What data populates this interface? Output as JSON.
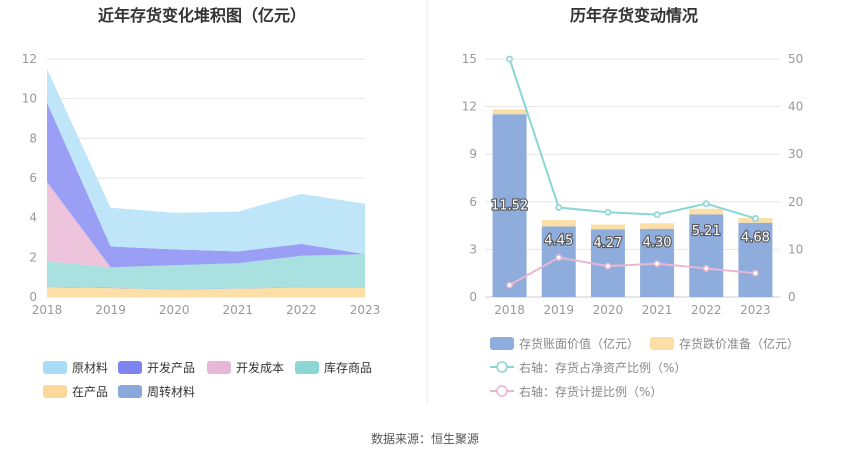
{
  "footer": {
    "source": "数据来源：恒生聚源"
  },
  "chart_data": [
    {
      "type": "area",
      "title": "近年存货变化堆积图（亿元）",
      "x": [
        "2018",
        "2019",
        "2020",
        "2021",
        "2022",
        "2023"
      ],
      "yticks": [
        "0",
        "2",
        "4",
        "6",
        "8",
        "10",
        "12"
      ],
      "ylim": [
        0,
        12
      ],
      "stack_order": [
        "在产品",
        "周转材料",
        "库存商品",
        "开发成本",
        "开发产品",
        "原材料"
      ],
      "series": [
        {
          "name": "在产品",
          "color": "#fbdfa6",
          "values": [
            0.5,
            0.45,
            0.38,
            0.42,
            0.48,
            0.48
          ]
        },
        {
          "name": "周转材料",
          "color": "#8eaddc",
          "values": [
            0.02,
            0.02,
            0.02,
            0.02,
            0.02,
            0.02
          ]
        },
        {
          "name": "库存商品",
          "color": "#a9e0e0",
          "values": [
            1.28,
            1.03,
            1.2,
            1.26,
            1.58,
            1.66
          ]
        },
        {
          "name": "开发成本",
          "color": "#eec3dc",
          "values": [
            4.0,
            0.0,
            0.0,
            0.0,
            0.0,
            0.0
          ]
        },
        {
          "name": "开发产品",
          "color": "#9a9ff5",
          "values": [
            4.0,
            1.05,
            0.8,
            0.6,
            0.6,
            0.0
          ]
        },
        {
          "name": "原材料",
          "color": "#bfe5f9",
          "values": [
            1.7,
            1.95,
            1.85,
            2.0,
            2.52,
            2.54
          ]
        }
      ],
      "legend": [
        {
          "name": "原材料",
          "color": "#a8dcf7"
        },
        {
          "name": "开发产品",
          "color": "#7f85f0"
        },
        {
          "name": "开发成本",
          "color": "#e6b8d7"
        },
        {
          "name": "库存商品",
          "color": "#8cd6d6"
        },
        {
          "name": "在产品",
          "color": "#fcd99a"
        },
        {
          "name": "周转材料",
          "color": "#8aa9db"
        }
      ]
    },
    {
      "type": "bar",
      "title": "历年存货变动情况",
      "categories": [
        "2018",
        "2019",
        "2020",
        "2021",
        "2022",
        "2023"
      ],
      "yticks_left": [
        "0",
        "3",
        "6",
        "9",
        "12",
        "15"
      ],
      "ylim_left": [
        0,
        15
      ],
      "yticks_right": [
        "0",
        "10",
        "20",
        "30",
        "40",
        "50"
      ],
      "ylim_right": [
        0,
        50
      ],
      "bar_series": [
        {
          "name": "存货账面价值（亿元）",
          "color": "#8eaddc",
          "values": [
            11.52,
            4.45,
            4.27,
            4.3,
            5.21,
            4.68
          ],
          "labels": [
            "11.52",
            "4.45",
            "4.27",
            "4.30",
            "5.21",
            "4.68"
          ]
        },
        {
          "name": "存货跌价准备（亿元）",
          "color": "#fbdfa6",
          "values": [
            0.3,
            0.4,
            0.3,
            0.35,
            0.35,
            0.3
          ]
        }
      ],
      "line_series": [
        {
          "name": "右轴：存货占净资产比例（%）",
          "color": "#8ad6d6",
          "values": [
            50.0,
            18.8,
            17.8,
            17.3,
            19.6,
            16.5
          ]
        },
        {
          "name": "右轴：存货计提比例（%）",
          "color": "#e9b6d4",
          "values": [
            2.5,
            8.3,
            6.5,
            7.0,
            6.0,
            5.0
          ]
        }
      ]
    }
  ]
}
